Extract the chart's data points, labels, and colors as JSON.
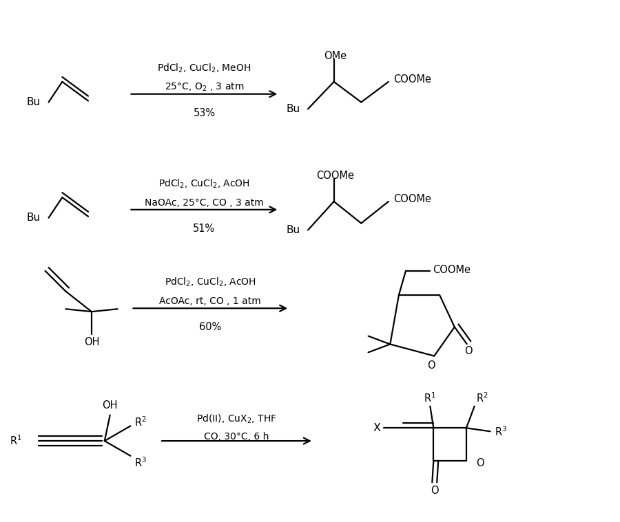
{
  "bg_color": "#ffffff",
  "fig_width": 9.0,
  "fig_height": 7.59,
  "reactions": [
    {
      "reagents_line1": "PdCl$_2$, CuCl$_2$, MeOH",
      "reagents_line2": "25°C, O$_2$ , 3 atm",
      "yield": "53%"
    },
    {
      "reagents_line1": "PdCl$_2$, CuCl$_2$, AcOH",
      "reagents_line2": "NaOAc, 25°C, CO , 3 atm",
      "yield": "51%"
    },
    {
      "reagents_line1": "PdCl$_2$, CuCl$_2$, AcOH",
      "reagents_line2": "AcOAc, rt, CO , 1 atm",
      "yield": "60%"
    },
    {
      "reagents_line1": "Pd(II), CuX$_2$, THF",
      "reagents_line2": "CO, 30°C, 6 h",
      "yield": ""
    }
  ]
}
